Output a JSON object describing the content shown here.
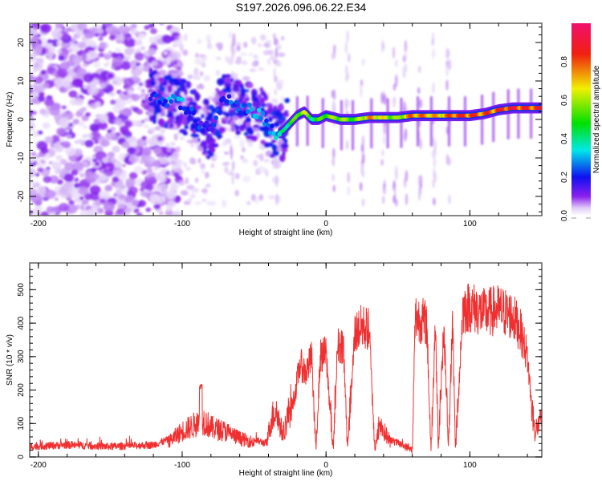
{
  "title": "S197.2026.096.06.22.E34",
  "chart_data": [
    {
      "type": "heatmap",
      "name": "spectrogram",
      "xlabel": "Height of straight line (km)",
      "ylabel": "Frequency (Hz)",
      "xlim": [
        -206,
        150
      ],
      "ylim": [
        -25,
        25
      ],
      "xticks": [
        -200,
        -100,
        0,
        100
      ],
      "xtick_labels": [
        "-200",
        "-100",
        "0",
        "100"
      ],
      "yticks": [
        -20,
        -10,
        0,
        10,
        20
      ],
      "ytick_labels": [
        "-20",
        "-10",
        "0",
        "10",
        "20"
      ],
      "colorbar": {
        "label": "Normalized spectral amplitude",
        "range": [
          0,
          1
        ],
        "ticks": [
          0.0,
          0.2,
          0.4,
          0.6,
          0.8
        ],
        "tick_labels": [
          "0.0",
          "0.2",
          "0.4",
          "0.6",
          "0.8"
        ],
        "colormap": [
          "#ffffff",
          "#e6d6fa",
          "#8a20ee",
          "#1010f0",
          "#00e8e8",
          "#00e000",
          "#f0f000",
          "#f02010",
          "#f0106e"
        ]
      },
      "ridge": {
        "description": "dominant frequency trace vs height",
        "x": [
          -120,
          -110,
          -100,
          -95,
          -90,
          -85,
          -80,
          -70,
          -60,
          -50,
          -45,
          -40,
          -35,
          -30,
          -25,
          -20,
          -15,
          -10,
          -5,
          0,
          10,
          20,
          30,
          40,
          50,
          60,
          70,
          80,
          90,
          100,
          110,
          120,
          130,
          140,
          150
        ],
        "freq": [
          6,
          5,
          4,
          2,
          0,
          -2,
          -3,
          6,
          3,
          2,
          1,
          -2,
          -4,
          -3,
          -1,
          1,
          2,
          0,
          0,
          1,
          0,
          0,
          0.5,
          0.5,
          0.5,
          1,
          1,
          1,
          1,
          1,
          1.5,
          2.5,
          3,
          3,
          3
        ],
        "amplitude": [
          0.25,
          0.3,
          0.3,
          0.25,
          0.25,
          0.2,
          0.2,
          0.25,
          0.25,
          0.4,
          0.35,
          0.25,
          0.35,
          0.45,
          0.5,
          0.6,
          0.7,
          0.45,
          0.55,
          0.6,
          0.65,
          0.55,
          0.8,
          0.7,
          0.6,
          0.85,
          0.8,
          0.75,
          0.9,
          0.9,
          0.85,
          0.9,
          0.95,
          0.9,
          0.9
        ]
      },
      "noise_region": {
        "x_from": -206,
        "x_to": -110,
        "amplitude_max": 0.2
      }
    },
    {
      "type": "line",
      "name": "snr",
      "xlabel": "Height of straight line (km)",
      "ylabel": "SNR (10 * v/v)",
      "xlim": [
        -206,
        150
      ],
      "ylim": [
        0,
        580
      ],
      "xticks": [
        -200,
        -100,
        0,
        100
      ],
      "xtick_labels": [
        "-200",
        "-100",
        "0",
        "100"
      ],
      "yticks": [
        0,
        100,
        200,
        300,
        400,
        500
      ],
      "ytick_labels": [
        "0",
        "100",
        "200",
        "300",
        "400",
        "500"
      ],
      "color": "#f03030",
      "series": [
        {
          "name": "SNR envelope",
          "x": [
            -206,
            -180,
            -150,
            -120,
            -110,
            -100,
            -90,
            -85,
            -80,
            -70,
            -60,
            -50,
            -42,
            -38,
            -35,
            -30,
            -26,
            -22,
            -18,
            -14,
            -10,
            -7,
            -4,
            0,
            5,
            8,
            12,
            15,
            20,
            25,
            30,
            34,
            37,
            45,
            55,
            60,
            62,
            70,
            73,
            76,
            78,
            82,
            85,
            88,
            90,
            95,
            100,
            110,
            120,
            130,
            135,
            140,
            143,
            145,
            150
          ],
          "y": [
            20,
            25,
            20,
            25,
            40,
            70,
            90,
            100,
            80,
            70,
            50,
            40,
            30,
            100,
            130,
            60,
            120,
            180,
            280,
            250,
            300,
            10,
            300,
            310,
            10,
            330,
            340,
            10,
            370,
            390,
            380,
            10,
            90,
            40,
            20,
            10,
            420,
            400,
            10,
            410,
            10,
            400,
            10,
            420,
            10,
            440,
            450,
            430,
            440,
            420,
            380,
            300,
            150,
            70,
            100
          ]
        }
      ]
    }
  ]
}
